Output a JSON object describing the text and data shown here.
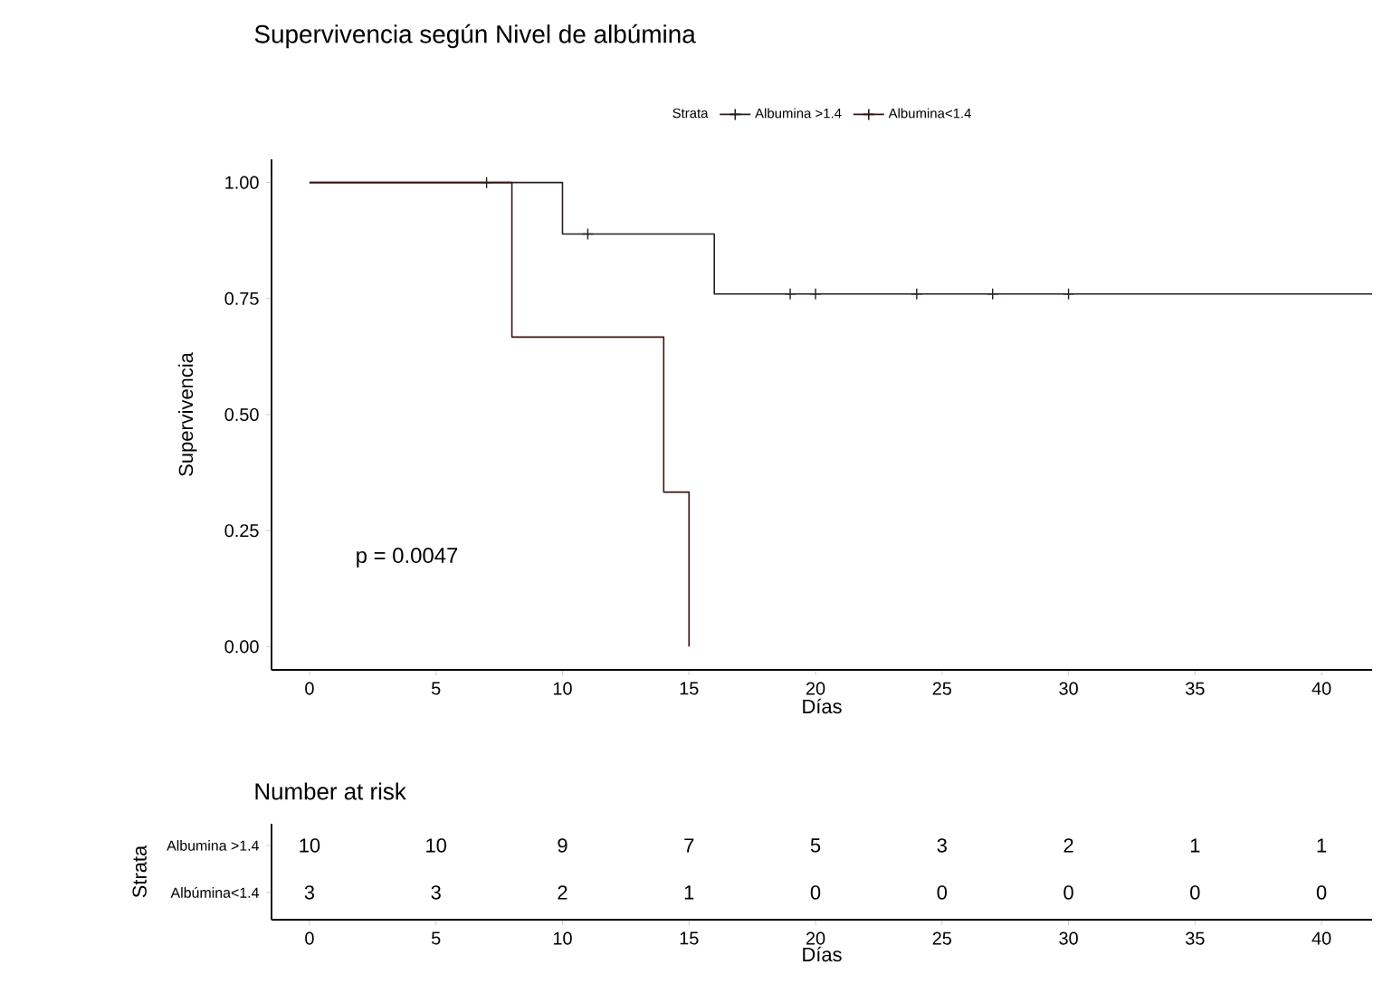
{
  "chart_data": [
    {
      "type": "step",
      "title": "Supervivencia según Nivel de albúmina",
      "legend_title": "Strata",
      "legend": "top",
      "xlabel": "Días",
      "ylabel": "Supervivencia",
      "annotations": [
        "p = 0.0047"
      ],
      "xlim": [
        -1.5,
        42
      ],
      "ylim": [
        -0.05,
        1.05
      ],
      "xticks": [
        0,
        5,
        10,
        15,
        20,
        25,
        30,
        35,
        40
      ],
      "yticks": [
        {
          "value": 0,
          "label": "0.00"
        },
        0.25,
        {
          "value": 0.5,
          "label": "0.50"
        },
        0.75,
        {
          "value": 1,
          "label": "1.00"
        }
      ],
      "series": [
        {
          "name": "Albumina >1.4",
          "color": "#2a1e1e",
          "x": [
            0,
            10,
            16,
            42
          ],
          "values": [
            1,
            0.889,
            0.76,
            0.76
          ]
        },
        {
          "name": "Albumina<1.4",
          "color": "#3a1414",
          "x": [
            0,
            8,
            14,
            15
          ],
          "values": [
            1,
            0.667,
            0.333,
            0
          ]
        },
        {
          "type": "scatter",
          "marker": "cross",
          "color": "#2a1e1e",
          "x": [
            7,
            11,
            19,
            20,
            24,
            27,
            30
          ],
          "values": [
            1,
            0.889,
            0.76,
            0.76,
            0.76,
            0.76,
            0.76
          ]
        }
      ]
    },
    {
      "type": "heatmap",
      "data_labels": true,
      "title": "Number at risk",
      "xlabel": "Días",
      "ylabel": "Strata",
      "categories": [
        "0",
        "5",
        "10",
        "15",
        "20",
        "25",
        "30",
        "35",
        "40"
      ],
      "y_categories": [
        "Albumina >1.4",
        "Albúmina<1.4"
      ],
      "cells": [
        [
          10,
          10,
          9,
          7,
          5,
          3,
          2,
          1,
          1
        ],
        [
          3,
          3,
          2,
          1,
          0,
          0,
          0,
          0,
          0
        ]
      ]
    }
  ]
}
